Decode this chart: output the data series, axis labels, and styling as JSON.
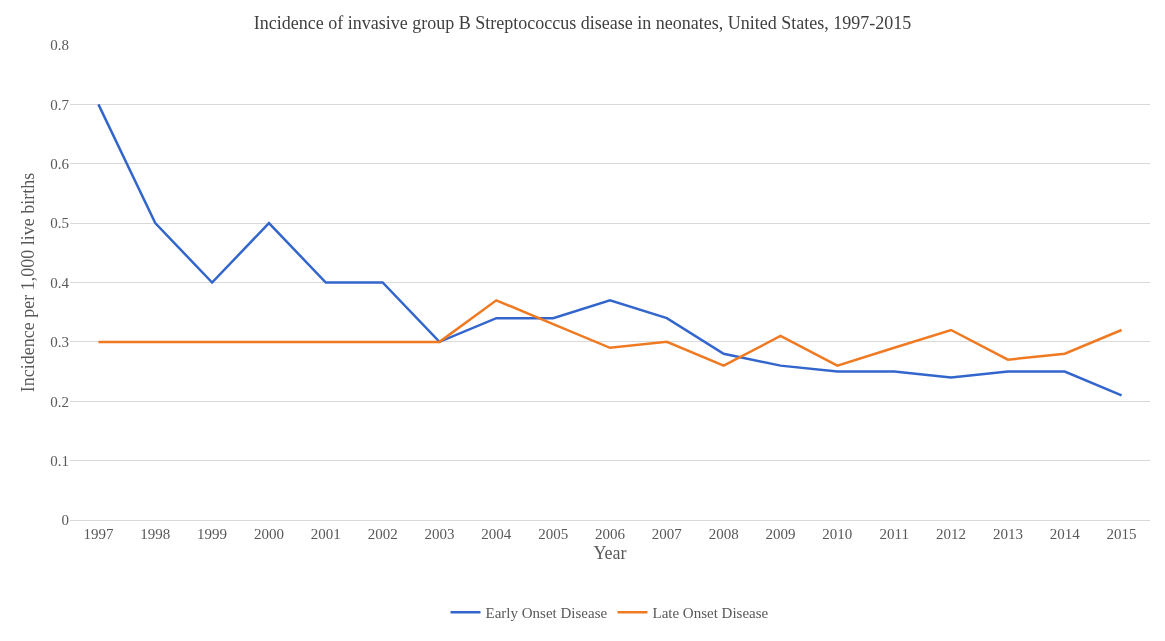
{
  "chart_data": {
    "type": "line",
    "title": "Incidence of invasive group B Streptococcus disease in neonates, United States, 1997-2015",
    "xlabel": "Year",
    "ylabel": "Incidence per 1,000 live births",
    "categories": [
      "1997",
      "1998",
      "1999",
      "2000",
      "2001",
      "2002",
      "2003",
      "2004",
      "2005",
      "2006",
      "2007",
      "2008",
      "2009",
      "2010",
      "2011",
      "2012",
      "2013",
      "2014",
      "2015"
    ],
    "series": [
      {
        "name": "Early Onset Disease",
        "color": "#3366cc",
        "values": [
          0.7,
          0.5,
          0.4,
          0.5,
          0.4,
          0.4,
          0.3,
          0.34,
          0.34,
          0.37,
          0.34,
          0.28,
          0.26,
          0.25,
          0.25,
          0.24,
          0.25,
          0.25,
          0.21
        ]
      },
      {
        "name": "Late Onset Disease",
        "color": "#f07a22",
        "values": [
          0.3,
          0.3,
          0.3,
          0.3,
          0.3,
          0.3,
          0.3,
          0.37,
          0.33,
          0.29,
          0.3,
          0.26,
          0.31,
          0.26,
          0.29,
          0.32,
          0.27,
          0.28,
          0.32
        ]
      }
    ],
    "ylim": [
      0,
      0.8
    ],
    "yticks": [
      0,
      0.1,
      0.2,
      0.3,
      0.4,
      0.5,
      0.6,
      0.7,
      0.8
    ],
    "grid": "y",
    "legend": "bottom",
    "marker": "none",
    "line_style": "solid"
  }
}
